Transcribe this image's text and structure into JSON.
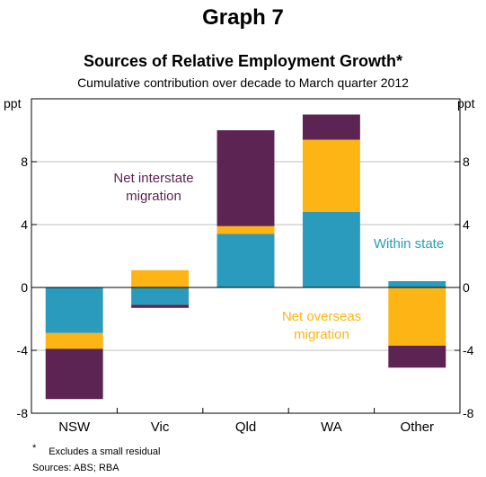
{
  "chart_data": {
    "type": "bar",
    "stacked": true,
    "title": "Graph 7",
    "subtitle": "Sources of Relative Employment Growth*",
    "description": "Cumulative contribution over decade to March quarter 2012",
    "ylabel_left": "ppt",
    "ylabel_right": "ppt",
    "ylim": [
      -8,
      12
    ],
    "yticks": [
      -8,
      -4,
      0,
      4,
      8
    ],
    "grid": true,
    "categories": [
      "NSW",
      "Vic",
      "Qld",
      "WA",
      "Other"
    ],
    "series": [
      {
        "name": "Within state",
        "color": "#2a9bbd",
        "values": [
          -2.9,
          -1.1,
          3.4,
          4.8,
          0.4
        ]
      },
      {
        "name": "Net overseas migration",
        "color": "#fdb515",
        "values": [
          -1.0,
          1.1,
          0.5,
          4.6,
          -3.7
        ]
      },
      {
        "name": "Net interstate migration",
        "color": "#5b2453",
        "values": [
          -3.2,
          -0.2,
          6.1,
          1.6,
          -1.4
        ]
      }
    ],
    "annotations": [
      {
        "series": "Net interstate migration",
        "lines": [
          "Net interstate",
          "migration"
        ]
      },
      {
        "series": "Within state",
        "lines": [
          "Within state"
        ]
      },
      {
        "series": "Net overseas migration",
        "lines": [
          "Net overseas",
          "migration"
        ]
      }
    ]
  },
  "footnote": {
    "marker": "*",
    "text": "Excludes a small residual"
  },
  "sources": "Sources: ABS; RBA"
}
